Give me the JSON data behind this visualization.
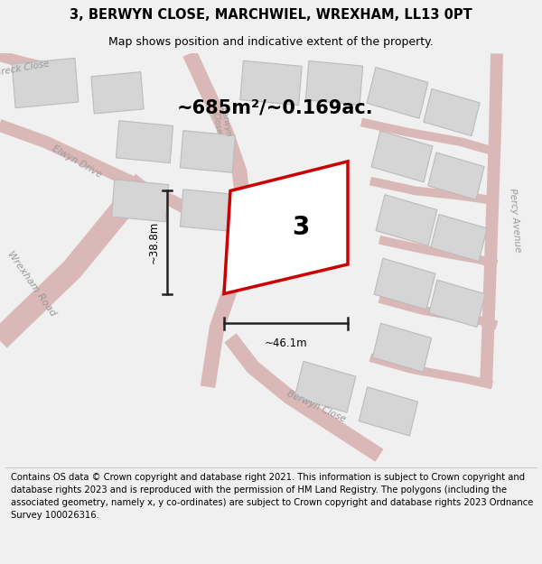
{
  "title": "3, BERWYN CLOSE, MARCHWIEL, WREXHAM, LL13 0PT",
  "subtitle": "Map shows position and indicative extent of the property.",
  "area_text": "~685m²/~0.169ac.",
  "width_label": "~46.1m",
  "height_label": "~38.8m",
  "number_label": "3",
  "footer_text": "Contains OS data © Crown copyright and database right 2021. This information is subject to Crown copyright and database rights 2023 and is reproduced with the permission of HM Land Registry. The polygons (including the associated geometry, namely x, y co-ordinates) are subject to Crown copyright and database rights 2023 Ordnance Survey 100026316.",
  "bg_color": "#f0f0f0",
  "map_bg": "#f8f8f8",
  "road_color": "#dbb8b8",
  "road_outline": "#ccaaaa",
  "building_color": "#d5d5d5",
  "building_edge": "#bbbbbb",
  "plot_color": "#cc0000",
  "dim_color": "#222222",
  "road_label_color": "#999999",
  "title_fontsize": 10.5,
  "subtitle_fontsize": 9,
  "area_fontsize": 15,
  "number_fontsize": 20,
  "dim_fontsize": 8.5,
  "footer_fontsize": 7.2,
  "label_fontsize": 7.5
}
